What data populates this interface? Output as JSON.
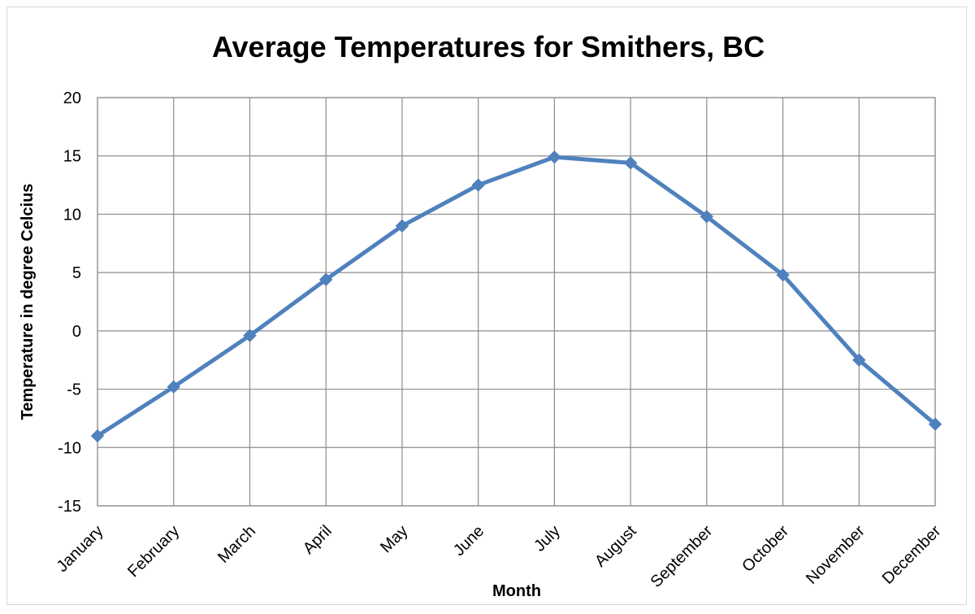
{
  "chart_data": {
    "type": "line",
    "title": "Average Temperatures for Smithers, BC",
    "xlabel": "Month",
    "ylabel": "Temperature in degree Celcius",
    "categories": [
      "January",
      "February",
      "March",
      "April",
      "May",
      "June",
      "July",
      "August",
      "September",
      "October",
      "November",
      "December"
    ],
    "series": [
      {
        "values": [
          -9.0,
          -4.8,
          -0.4,
          4.4,
          9.0,
          12.5,
          14.9,
          14.4,
          9.8,
          4.8,
          -2.5,
          -8.0
        ],
        "color": "#4F81BD",
        "marker": "diamond"
      }
    ],
    "ylim": [
      -15,
      20
    ],
    "yticks": [
      20,
      15,
      10,
      5,
      0,
      -5,
      -10,
      -15
    ],
    "grid": true,
    "legend": "none"
  }
}
